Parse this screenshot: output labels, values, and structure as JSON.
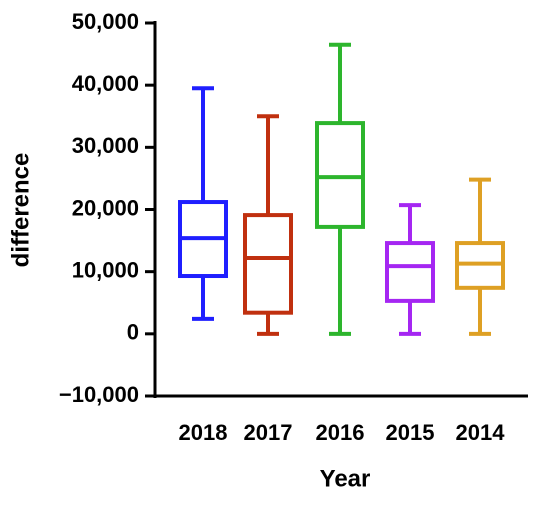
{
  "chart_data": {
    "type": "box",
    "x_label": "Year",
    "y_label": "difference",
    "categories": [
      "2018",
      "2017",
      "2016",
      "2015",
      "2014"
    ],
    "boxes": [
      {
        "min": 2400,
        "q1": 9300,
        "median": 15400,
        "q3": 21200,
        "max": 39500,
        "color": "#1f1fff"
      },
      {
        "min": 0,
        "q1": 3400,
        "median": 12200,
        "q3": 19100,
        "max": 35000,
        "color": "#c0300f"
      },
      {
        "min": 0,
        "q1": 17200,
        "median": 25200,
        "q3": 33900,
        "max": 46500,
        "color": "#2db52d"
      },
      {
        "min": 0,
        "q1": 5300,
        "median": 10900,
        "q3": 14600,
        "max": 20700,
        "color": "#a526f2"
      },
      {
        "min": 0,
        "q1": 7400,
        "median": 11300,
        "q3": 14600,
        "max": 24800,
        "color": "#dea024"
      }
    ],
    "ylim": [
      -10000,
      50000
    ],
    "yticks": [
      {
        "value": -10000,
        "label": "−10,000"
      },
      0,
      {
        "value": 10000,
        "label": "10,000"
      },
      {
        "value": 20000,
        "label": "20,000"
      },
      {
        "value": 30000,
        "label": "30,000"
      },
      {
        "value": 40000,
        "label": "40,000"
      },
      {
        "value": 50000,
        "label": "50,000"
      }
    ]
  }
}
